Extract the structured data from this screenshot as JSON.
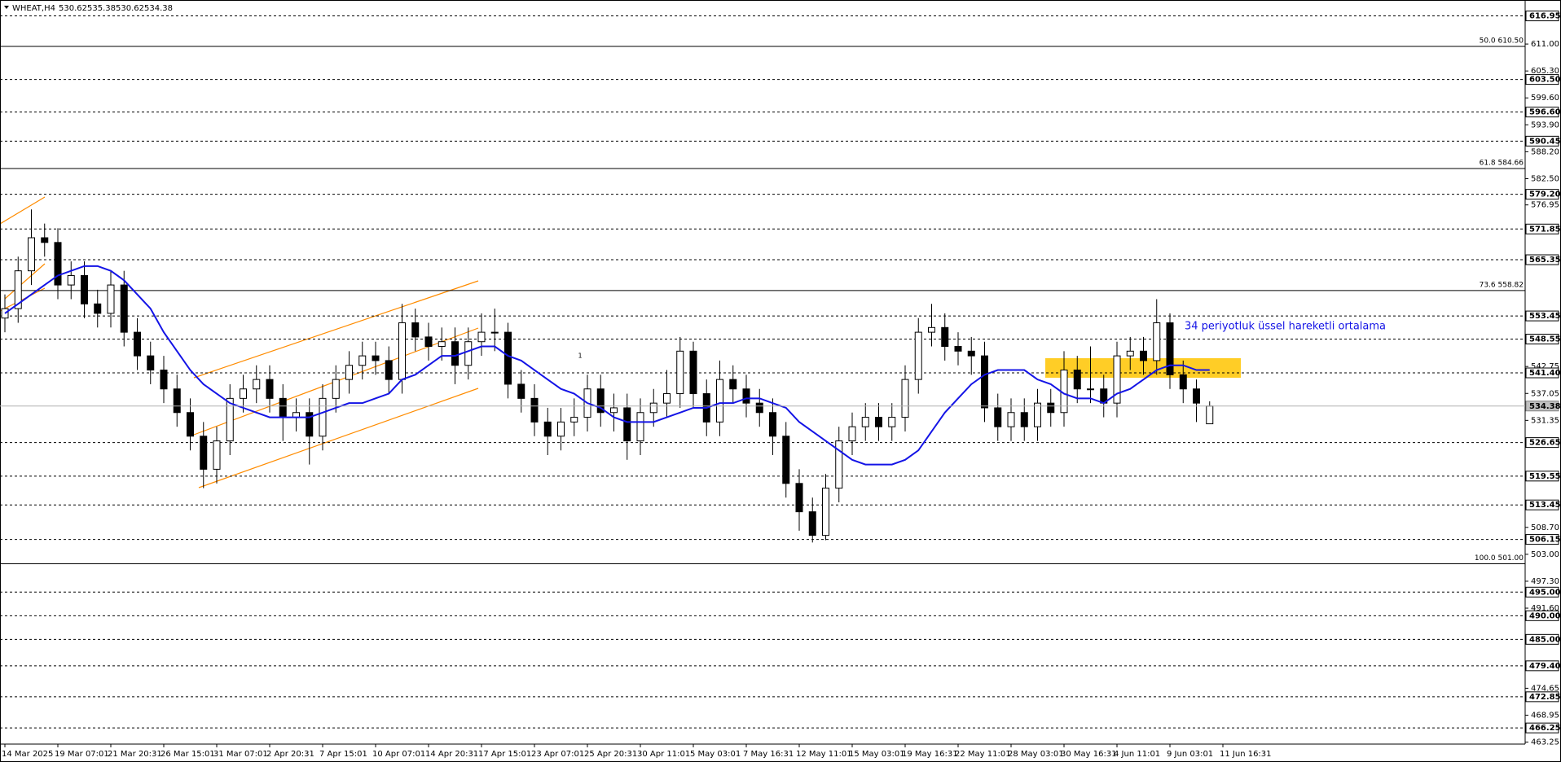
{
  "chart_data": {
    "type": "candlestick",
    "header": {
      "symbol": "WHEAT,H4",
      "open": 530.62,
      "high": 535.38,
      "low": 530.62,
      "close": 534.38
    },
    "categories": [
      "14 Mar 2025",
      "19 Mar 07:01",
      "21 Mar 20:31",
      "26 Mar 15:01",
      "31 Mar 07:01",
      "2 Apr 20:31",
      "7 Apr 15:01",
      "10 Apr 07:01",
      "14 Apr 20:31",
      "17 Apr 15:01",
      "23 Apr 07:01",
      "25 Apr 20:31",
      "30 Apr 11:01",
      "5 May 03:01",
      "7 May 16:31",
      "12 May 11:01",
      "15 May 03:01",
      "19 May 16:31",
      "22 May 11:01",
      "28 May 03:01",
      "30 May 16:31",
      "4 Jun 11:01",
      "9 Jun 03:01",
      "11 Jun 16:31"
    ],
    "candles": {
      "up_color": "#ffffff",
      "down_color": "#000000",
      "outline_color": "#000000",
      "open": [
        553,
        555,
        563,
        570,
        569,
        560,
        562,
        556,
        554,
        560,
        550,
        545,
        542,
        538,
        533,
        528,
        521,
        527,
        536,
        538,
        540,
        536,
        532,
        533,
        528,
        536,
        540,
        543,
        545,
        544,
        540,
        552,
        549,
        547,
        548,
        543,
        548,
        550,
        550,
        539,
        536,
        531,
        528,
        531,
        532,
        538,
        533,
        534,
        527,
        533,
        535,
        537,
        546,
        537,
        531,
        540,
        538,
        535,
        533,
        528,
        518,
        512,
        507,
        517,
        527,
        530,
        532,
        530,
        532,
        540,
        550,
        551,
        547,
        546,
        545,
        534,
        530,
        533,
        530,
        535,
        533,
        542,
        538,
        538,
        535,
        545,
        546,
        544,
        552,
        541,
        538,
        530.62
      ],
      "high": [
        558,
        566,
        576,
        573,
        572,
        565,
        565,
        559,
        563,
        563,
        553,
        548,
        545,
        541,
        536,
        531,
        530,
        539,
        541,
        543,
        543,
        539,
        536,
        536,
        539,
        543,
        546,
        548,
        548,
        547,
        556,
        555,
        552,
        551,
        551,
        551,
        554,
        555,
        552,
        542,
        539,
        534,
        534,
        536,
        541,
        541,
        537,
        537,
        536,
        538,
        542,
        549,
        548,
        540,
        544,
        543,
        541,
        538,
        536,
        531,
        521,
        515,
        520,
        530,
        533,
        535,
        535,
        535,
        543,
        553,
        556,
        554,
        550,
        549,
        548,
        537,
        536,
        536,
        538,
        538,
        546,
        545,
        547,
        541,
        548,
        549,
        549,
        557,
        554,
        544,
        540,
        535.38
      ],
      "low": [
        550,
        552,
        560,
        566,
        557,
        557,
        553,
        551,
        551,
        547,
        542,
        539,
        535,
        530,
        525,
        517,
        518,
        524,
        533,
        535,
        533,
        527,
        529,
        522,
        525,
        533,
        537,
        540,
        541,
        537,
        537,
        546,
        544,
        544,
        539,
        540,
        545,
        546,
        536,
        533,
        528,
        524,
        525,
        528,
        529,
        530,
        529,
        523,
        524,
        530,
        532,
        534,
        534,
        528,
        528,
        535,
        532,
        530,
        524,
        515,
        508,
        505.5,
        506,
        514,
        524,
        527,
        527,
        527,
        529,
        537,
        547,
        544,
        543,
        541,
        531,
        527,
        527,
        527,
        527,
        530,
        530,
        535,
        535,
        532,
        532,
        542,
        541,
        541,
        538,
        535,
        531,
        530.62
      ],
      "close": [
        555,
        563,
        570,
        569,
        560,
        562,
        556,
        554,
        560,
        550,
        545,
        542,
        538,
        533,
        528,
        521,
        527,
        536,
        538,
        540,
        536,
        532,
        533,
        528,
        536,
        540,
        543,
        545,
        544,
        540,
        552,
        549,
        547,
        548,
        543,
        548,
        550,
        550,
        539,
        536,
        531,
        528,
        531,
        532,
        538,
        533,
        534,
        527,
        533,
        535,
        537,
        546,
        537,
        531,
        540,
        538,
        535,
        533,
        528,
        518,
        512,
        507,
        517,
        527,
        530,
        532,
        530,
        532,
        540,
        550,
        551,
        547,
        546,
        545,
        534,
        530,
        533,
        530,
        535,
        533,
        542,
        538,
        538,
        535,
        545,
        546,
        544,
        552,
        541,
        538,
        535,
        534.38
      ]
    },
    "ema": {
      "color": "#1414e6",
      "values": [
        554,
        556,
        558,
        560,
        562,
        563,
        564,
        564,
        563,
        561,
        558,
        555,
        550,
        546,
        542,
        539,
        537,
        535,
        534,
        533,
        532,
        532,
        532,
        532,
        533,
        534,
        535,
        535,
        536,
        537,
        540,
        541,
        543,
        545,
        545,
        546,
        547,
        547,
        545,
        544,
        542,
        540,
        538,
        537,
        535,
        534,
        532,
        531,
        531,
        531,
        532,
        533,
        534,
        534,
        535,
        535,
        536,
        536,
        535,
        534,
        531,
        529,
        527,
        525,
        523,
        522,
        522,
        522,
        523,
        525,
        529,
        533,
        536,
        539,
        541,
        542,
        542,
        542,
        540,
        539,
        537,
        536,
        536,
        535,
        537,
        538,
        540,
        542,
        543,
        543,
        542,
        542
      ]
    },
    "annotation": "34 periyotluk üssel hareketli ortalama",
    "bar_marker": "1",
    "ylim": [
      462.83,
      620.32
    ],
    "yticks": [
      {
        "value": 611.0,
        "label": "611.00"
      },
      {
        "value": 605.3,
        "label": "605.30"
      },
      {
        "value": 599.6,
        "label": "599.60"
      },
      {
        "value": 593.9,
        "label": "593.90"
      },
      {
        "value": 588.2,
        "label": "588.20"
      },
      {
        "value": 582.5,
        "label": "582.50"
      },
      {
        "value": 576.95,
        "label": "576.95"
      },
      {
        "value": 542.75,
        "label": "542.75"
      },
      {
        "value": 537.05,
        "label": "537.05"
      },
      {
        "value": 531.35,
        "label": "531.35"
      },
      {
        "value": 508.7,
        "label": "508.70"
      },
      {
        "value": 503.0,
        "label": "503.00"
      },
      {
        "value": 497.3,
        "label": "497.30"
      },
      {
        "value": 491.6,
        "label": "491.60"
      },
      {
        "value": 474.65,
        "label": "474.65"
      },
      {
        "value": 468.95,
        "label": "468.95"
      },
      {
        "value": 463.25,
        "label": "463.25"
      }
    ],
    "levels": [
      {
        "value": 616.95,
        "label": "616.95"
      },
      {
        "value": 603.5,
        "label": "603.50"
      },
      {
        "value": 596.6,
        "label": "596.60"
      },
      {
        "value": 590.45,
        "label": "590.45"
      },
      {
        "value": 579.2,
        "label": "579.20"
      },
      {
        "value": 571.85,
        "label": "571.85"
      },
      {
        "value": 565.35,
        "label": "565.35"
      },
      {
        "value": 553.45,
        "label": "553.45"
      },
      {
        "value": 548.55,
        "label": "548.55"
      },
      {
        "value": 541.4,
        "label": "541.40"
      },
      {
        "value": 526.65,
        "label": "526.65"
      },
      {
        "value": 519.55,
        "label": "519.55"
      },
      {
        "value": 513.45,
        "label": "513.45"
      },
      {
        "value": 506.15,
        "label": "506.15"
      },
      {
        "value": 495.0,
        "label": "495.00"
      },
      {
        "value": 490.0,
        "label": "490.00"
      },
      {
        "value": 485.0,
        "label": "485.00"
      },
      {
        "value": 479.4,
        "label": "479.40"
      },
      {
        "value": 472.85,
        "label": "472.85"
      },
      {
        "value": 466.25,
        "label": "466.25"
      }
    ],
    "fibo": [
      {
        "value": 610.5,
        "label": "50.0 610.50"
      },
      {
        "value": 584.66,
        "label": "61.8 584.66"
      },
      {
        "value": 558.82,
        "label": "73.6 558.82"
      },
      {
        "value": 501.0,
        "label": "100.0 501.00"
      }
    ],
    "grid": false
  }
}
